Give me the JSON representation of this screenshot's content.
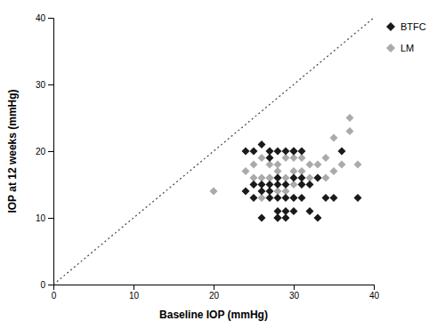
{
  "chart_data": {
    "type": "scatter",
    "xlabel": "Baseline IOP (mmHg)",
    "ylabel": "IOP at 12 weeks (mmHg)",
    "xlim": [
      0,
      40
    ],
    "ylim": [
      0,
      40
    ],
    "xticks": [
      0,
      10,
      20,
      30,
      40
    ],
    "yticks": [
      0,
      10,
      20,
      30,
      40
    ],
    "grid": false,
    "legend": "right",
    "series": [
      {
        "name": "BTFC",
        "type": "scatter",
        "color": "#1a1a1a",
        "marker": "diamond",
        "x": [
          24,
          25,
          25,
          26,
          26,
          26,
          27,
          27,
          27,
          27,
          28,
          28,
          28,
          28,
          28,
          28,
          29,
          29,
          29,
          29,
          29,
          30,
          30,
          30,
          30,
          31,
          31,
          31,
          32,
          32,
          33,
          33,
          34,
          35,
          36,
          38,
          24,
          25,
          26,
          27,
          28,
          30,
          31
        ],
        "values": [
          20,
          13,
          20,
          10,
          14,
          21,
          13,
          15,
          19,
          20,
          10,
          11,
          13,
          15,
          16,
          20,
          10,
          11,
          13,
          15,
          20,
          11,
          13,
          16,
          20,
          13,
          15,
          16,
          11,
          15,
          10,
          16,
          13,
          13,
          20,
          13,
          14,
          15,
          15,
          14,
          10,
          20,
          20
        ]
      },
      {
        "name": "LM",
        "type": "scatter",
        "color": "#aaaaaa",
        "marker": "diamond",
        "x": [
          20,
          24,
          25,
          25,
          26,
          26,
          27,
          27,
          27,
          28,
          28,
          28,
          28,
          29,
          29,
          29,
          30,
          30,
          30,
          30,
          31,
          31,
          31,
          32,
          32,
          33,
          33,
          34,
          34,
          35,
          35,
          36,
          37,
          37,
          38,
          25,
          26,
          27
        ],
        "values": [
          14,
          17,
          16,
          18,
          16,
          19,
          16,
          18,
          20,
          14,
          16,
          17,
          18,
          14,
          16,
          19,
          13,
          15,
          17,
          19,
          15,
          17,
          19,
          16,
          18,
          16,
          18,
          16,
          19,
          17,
          22,
          18,
          23,
          25,
          18,
          15,
          13,
          16
        ]
      },
      {
        "type": "line",
        "color": "#444444",
        "line_style": "dotted",
        "x": [
          0,
          40
        ],
        "values": [
          0,
          40
        ]
      }
    ]
  }
}
